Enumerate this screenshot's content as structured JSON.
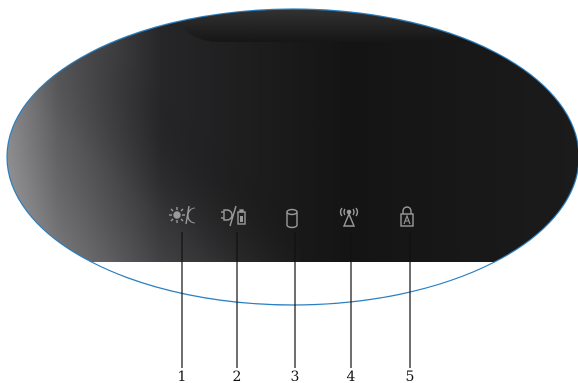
{
  "colors": {
    "panel_dark": "#111111",
    "panel_edge": "#2a7fc0",
    "icon_gray": "#9a9a9a",
    "leader": "#111111"
  },
  "indicators": [
    {
      "icon": "power-sleep-icon",
      "number": "1"
    },
    {
      "icon": "ac-battery-icon",
      "number": "2"
    },
    {
      "icon": "hard-drive-icon",
      "number": "3"
    },
    {
      "icon": "wireless-icon",
      "number": "4"
    },
    {
      "icon": "caps-lock-icon",
      "number": "5"
    }
  ]
}
